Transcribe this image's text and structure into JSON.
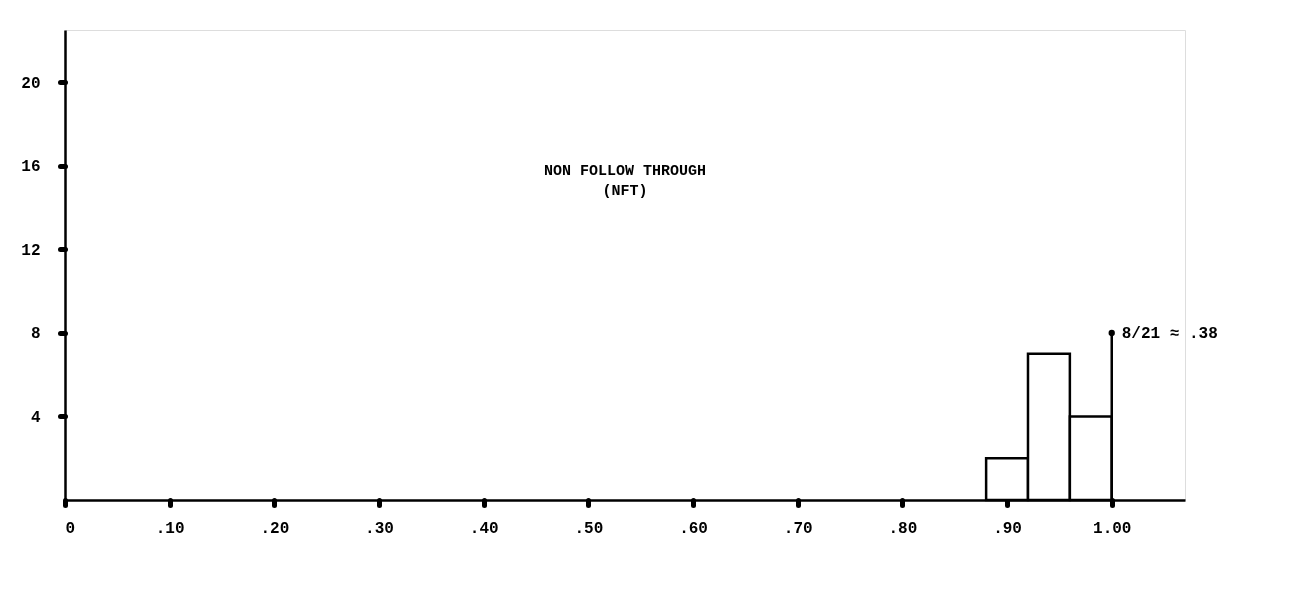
{
  "chart_data": {
    "type": "histogram",
    "title": "NON FOLLOW THROUGH\n(NFT)",
    "bins": [
      0.88,
      0.92,
      0.96,
      1.0
    ],
    "values": [
      2,
      7,
      4
    ],
    "color": "#000000",
    "xlim": [
      0,
      1.07
    ],
    "ylim": [
      0,
      22.5
    ],
    "xticks": [
      {
        "value": 0,
        "label": "0"
      },
      {
        "value": 0.1,
        "label": ".10"
      },
      {
        "value": 0.2,
        "label": ".20"
      },
      {
        "value": 0.3,
        "label": ".30"
      },
      {
        "value": 0.4,
        "label": ".40"
      },
      {
        "value": 0.5,
        "label": ".50"
      },
      {
        "value": 0.6,
        "label": ".60"
      },
      {
        "value": 0.7,
        "label": ".70"
      },
      {
        "value": 0.8,
        "label": ".80"
      },
      {
        "value": 0.9,
        "label": ".90"
      },
      {
        "value": 1.0,
        "label": "1.00"
      }
    ],
    "yticks": [
      4,
      8,
      12,
      16,
      20
    ],
    "annotations": [
      {
        "text": "8/21 ≈ .38",
        "x": 1.0,
        "y": 8
      }
    ],
    "grid": false
  }
}
